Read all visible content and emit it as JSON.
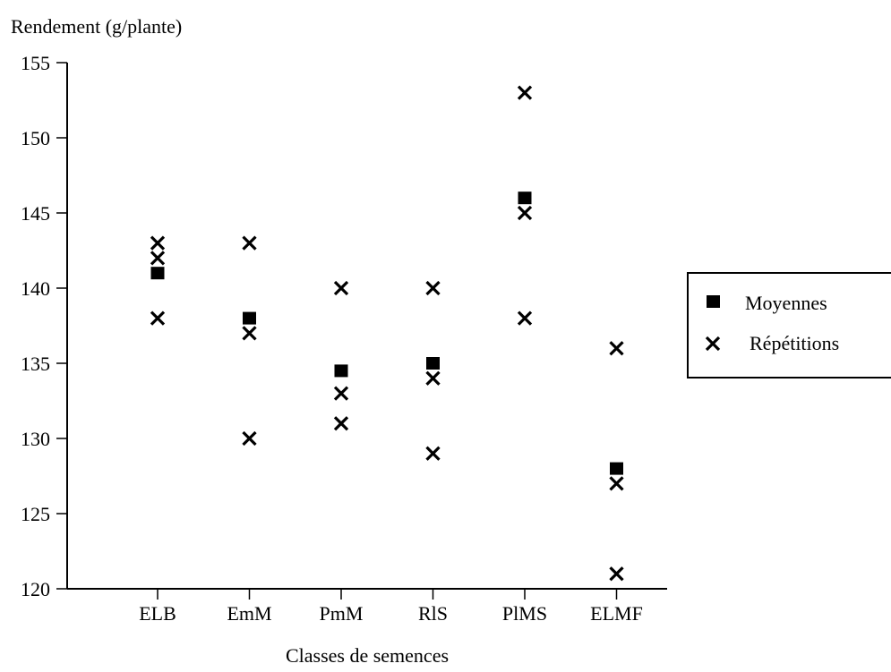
{
  "chart_data": {
    "type": "scatter",
    "ylabel": "Rendement (g/plante)",
    "xlabel": "Classes de semences",
    "categories": [
      "ELB",
      "EmM",
      "PmM",
      "RlS",
      "PlMS",
      "ELMF"
    ],
    "ylim": [
      120,
      155
    ],
    "yticks": [
      120,
      125,
      130,
      135,
      140,
      145,
      150,
      155
    ],
    "legend_position": "right",
    "series": [
      {
        "name": "Moyennes",
        "marker": "filled-square",
        "values": [
          141,
          138,
          134.5,
          135,
          146,
          128
        ]
      },
      {
        "name": "Répétitions",
        "marker": "cross",
        "points": [
          [
            143,
            142,
            138
          ],
          [
            143,
            137,
            130
          ],
          [
            140,
            133,
            131
          ],
          [
            140,
            134,
            129
          ],
          [
            153,
            145,
            138
          ],
          [
            136,
            127,
            121
          ]
        ]
      }
    ],
    "grid": false
  }
}
